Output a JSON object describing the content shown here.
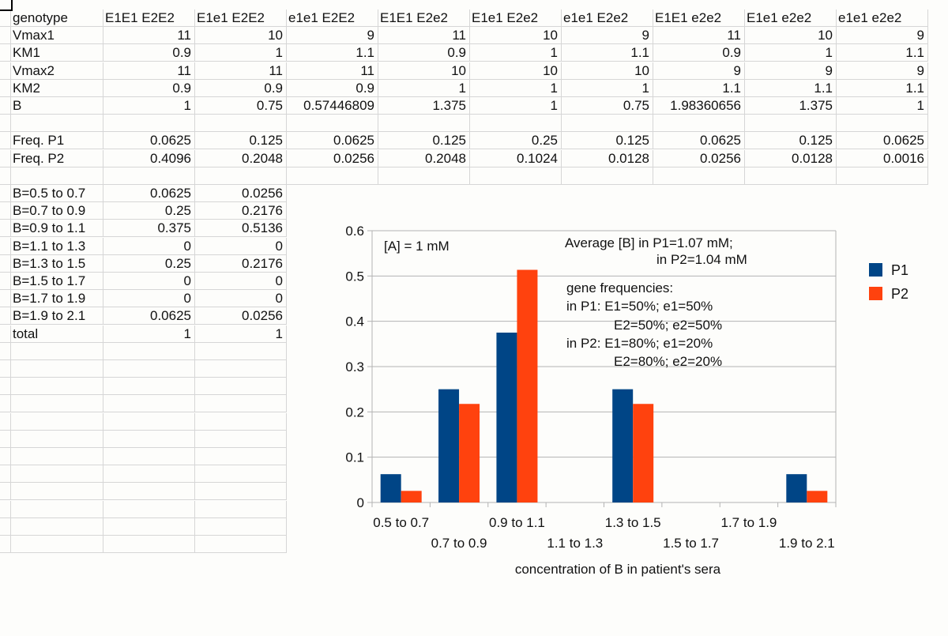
{
  "sheet": {
    "header": [
      "genotype",
      "E1E1 E2E2",
      "E1e1 E2E2",
      "e1e1 E2E2",
      "E1E1 E2e2",
      "E1e1 E2e2",
      "e1e1 E2e2",
      "E1E1 e2e2",
      "E1e1 e2e2",
      "e1e1 e2e2"
    ],
    "rows": [
      [
        "Vmax1",
        "11",
        "10",
        "9",
        "11",
        "10",
        "9",
        "11",
        "10",
        "9"
      ],
      [
        "KM1",
        "0.9",
        "1",
        "1.1",
        "0.9",
        "1",
        "1.1",
        "0.9",
        "1",
        "1.1"
      ],
      [
        "Vmax2",
        "11",
        "11",
        "11",
        "10",
        "10",
        "10",
        "9",
        "9",
        "9"
      ],
      [
        "KM2",
        "0.9",
        "0.9",
        "0.9",
        "1",
        "1",
        "1",
        "1.1",
        "1.1",
        "1.1"
      ],
      [
        "B",
        "1",
        "0.75",
        "0.57446809",
        "1.375",
        "1",
        "0.75",
        "1.98360656",
        "1.375",
        "1"
      ],
      [
        "",
        "",
        "",
        "",
        "",
        "",
        "",
        "",
        "",
        ""
      ],
      [
        "Freq. P1",
        "0.0625",
        "0.125",
        "0.0625",
        "0.125",
        "0.25",
        "0.125",
        "0.0625",
        "0.125",
        "0.0625"
      ],
      [
        "Freq. P2",
        "0.4096",
        "0.2048",
        "0.0256",
        "0.2048",
        "0.1024",
        "0.0128",
        "0.0256",
        "0.0128",
        "0.0016"
      ],
      [
        "",
        "",
        "",
        "",
        "",
        "",
        "",
        "",
        "",
        ""
      ],
      [
        "B=0.5 to 0.7",
        "0.0625",
        "0.0256"
      ],
      [
        "B=0.7 to 0.9",
        "0.25",
        "0.2176"
      ],
      [
        "B=0.9 to 1.1",
        "0.375",
        "0.5136"
      ],
      [
        "B=1.1 to 1.3",
        "0",
        "0"
      ],
      [
        "B=1.3 to 1.5",
        "0.25",
        "0.2176"
      ],
      [
        "B=1.5 to 1.7",
        "0",
        "0"
      ],
      [
        "B=1.7 to 1.9",
        "0",
        "0"
      ],
      [
        "B=1.9 to 2.1",
        "0.0625",
        "0.0256"
      ],
      [
        "total",
        "1",
        "1"
      ]
    ]
  },
  "chart_data": {
    "type": "bar",
    "categories": [
      "0.5 to 0.7",
      "0.7 to 0.9",
      "0.9 to 1.1",
      "1.1 to 1.3",
      "1.3 to 1.5",
      "1.5 to 1.7",
      "1.7 to 1.9",
      "1.9 to 2.1"
    ],
    "series": [
      {
        "name": "P1",
        "color": "#004586",
        "values": [
          0.0625,
          0.25,
          0.375,
          0,
          0.25,
          0,
          0,
          0.0625
        ]
      },
      {
        "name": "P2",
        "color": "#ff420e",
        "values": [
          0.0256,
          0.2176,
          0.5136,
          0,
          0.2176,
          0,
          0,
          0.0256
        ]
      }
    ],
    "ylim": [
      0,
      0.6
    ],
    "yticks": [
      "0",
      "0.1",
      "0.2",
      "0.3",
      "0.4",
      "0.5",
      "0.6"
    ],
    "xlabel": "concentration of B in patient's sera",
    "ylabel": "",
    "grid": true,
    "legend": "right",
    "annotations": {
      "a_conc": "[A] = 1 mM",
      "avg_line1": "Average [B] in P1=1.07 mM;",
      "avg_line2": "in P2=1.04 mM",
      "gf_title": "gene frequencies:",
      "gf_p1_a": "in P1: E1=50%; e1=50%",
      "gf_p1_b": "E2=50%; e2=50%",
      "gf_p2_a": "in P2: E1=80%; e1=20%",
      "gf_p2_b": "E2=80%; e2=20%"
    }
  }
}
